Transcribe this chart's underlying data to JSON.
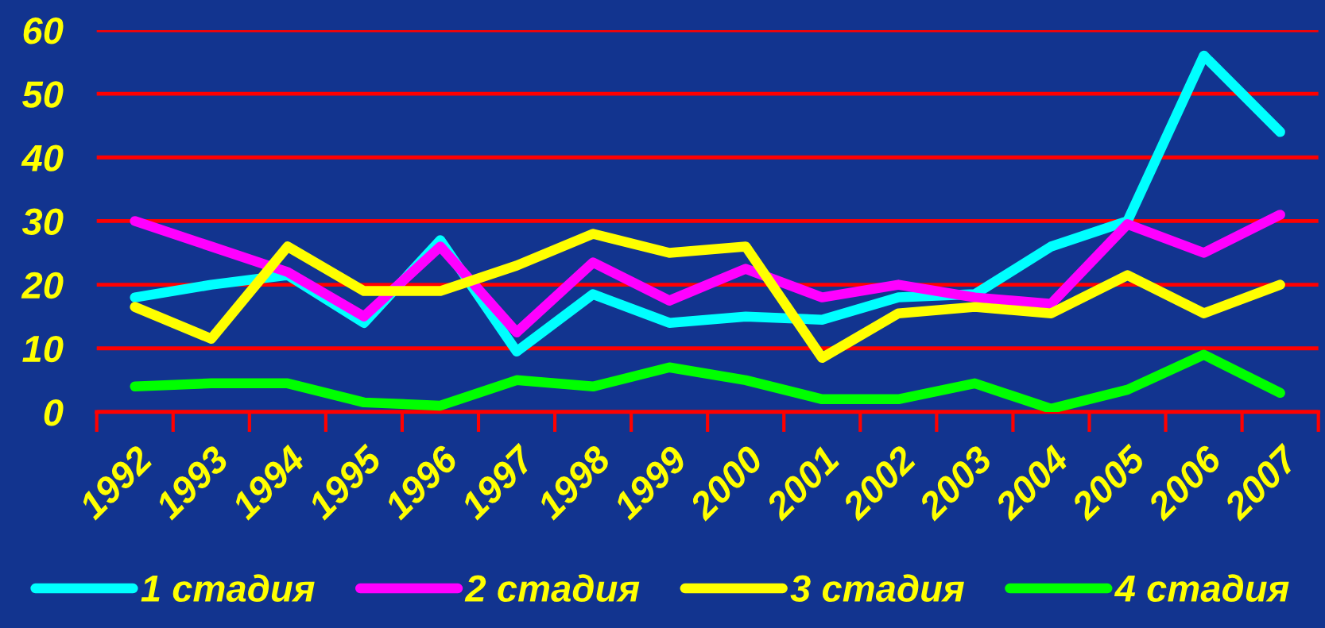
{
  "chart_data": {
    "type": "line",
    "categories": [
      "1992",
      "1993",
      "1994",
      "1995",
      "1996",
      "1997",
      "1998",
      "1999",
      "2000",
      "2001",
      "2002",
      "2003",
      "2004",
      "2005",
      "2006",
      "2007"
    ],
    "series": [
      {
        "name": "1 стадия",
        "color": "#00ffff",
        "values": [
          18,
          20,
          21.5,
          14,
          27,
          9.5,
          18.5,
          14,
          15,
          14.5,
          18,
          18.5,
          26,
          30,
          56,
          44
        ]
      },
      {
        "name": "2 стадия",
        "color": "#ff00ff",
        "values": [
          30,
          26,
          22,
          15,
          26,
          12.5,
          23.5,
          17.5,
          22.5,
          18,
          20,
          18,
          17,
          29.5,
          25,
          31
        ]
      },
      {
        "name": "3 стадия",
        "color": "#ffff00",
        "values": [
          16.5,
          11.5,
          26,
          19,
          19,
          23,
          28,
          25,
          26,
          8.5,
          15.5,
          16.5,
          15.5,
          21.5,
          15.5,
          20
        ]
      },
      {
        "name": "4 стадия",
        "color": "#00ff00",
        "values": [
          4,
          4.5,
          4.5,
          1.5,
          1,
          5,
          4,
          7,
          5,
          2,
          2,
          4.5,
          0.5,
          3.5,
          9,
          3
        ]
      }
    ],
    "ylim": [
      0,
      60
    ],
    "yticks": [
      0,
      10,
      20,
      30,
      40,
      50,
      60
    ],
    "grid": "y",
    "legend": "bottom",
    "line_style": "solid"
  }
}
